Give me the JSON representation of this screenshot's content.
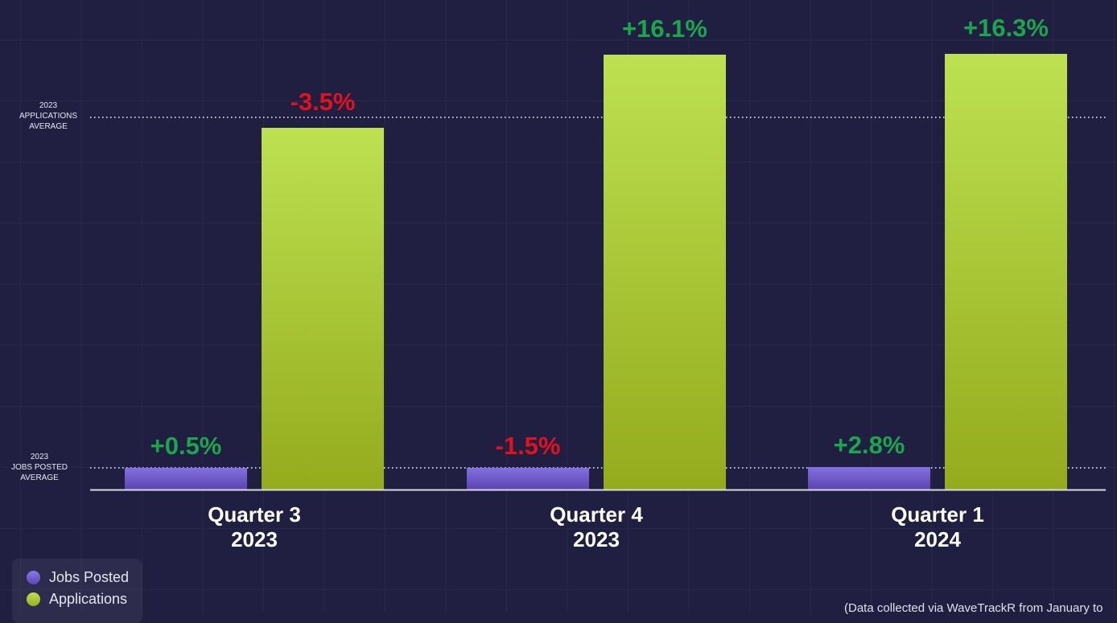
{
  "chart_data": {
    "type": "bar",
    "title": "",
    "xlabel": "",
    "ylabel": "",
    "categories": [
      {
        "line1": "Quarter 3",
        "line2": "2023"
      },
      {
        "line1": "Quarter 4",
        "line2": "2023"
      },
      {
        "line1": "Quarter 1",
        "line2": "2024"
      }
    ],
    "series": [
      {
        "name": "Jobs Posted",
        "color": "#7b68d8",
        "values": [
          27,
          27,
          28
        ],
        "changes": [
          "+0.5%",
          "-1.5%",
          "+2.8%"
        ]
      },
      {
        "name": "Applications",
        "color": "#b5d845",
        "values": [
          450,
          541,
          542
        ],
        "changes": [
          "-3.5%",
          "+16.1%",
          "+16.3%"
        ]
      }
    ],
    "ylim": [
      0,
      609
    ],
    "grid": true,
    "reference_lines": [
      {
        "label": [
          "2023",
          "APPLICATIONS",
          "AVERAGE"
        ],
        "value": 463
      },
      {
        "label": [
          "2023",
          "JOBS POSTED",
          "AVERAGE"
        ],
        "value": 27
      }
    ],
    "colors": {
      "positive": "#1aa64a",
      "negative": "#e3101e"
    },
    "legend_position": "bottom-left",
    "footnote": "(Data collected via WaveTrackR from January to"
  }
}
